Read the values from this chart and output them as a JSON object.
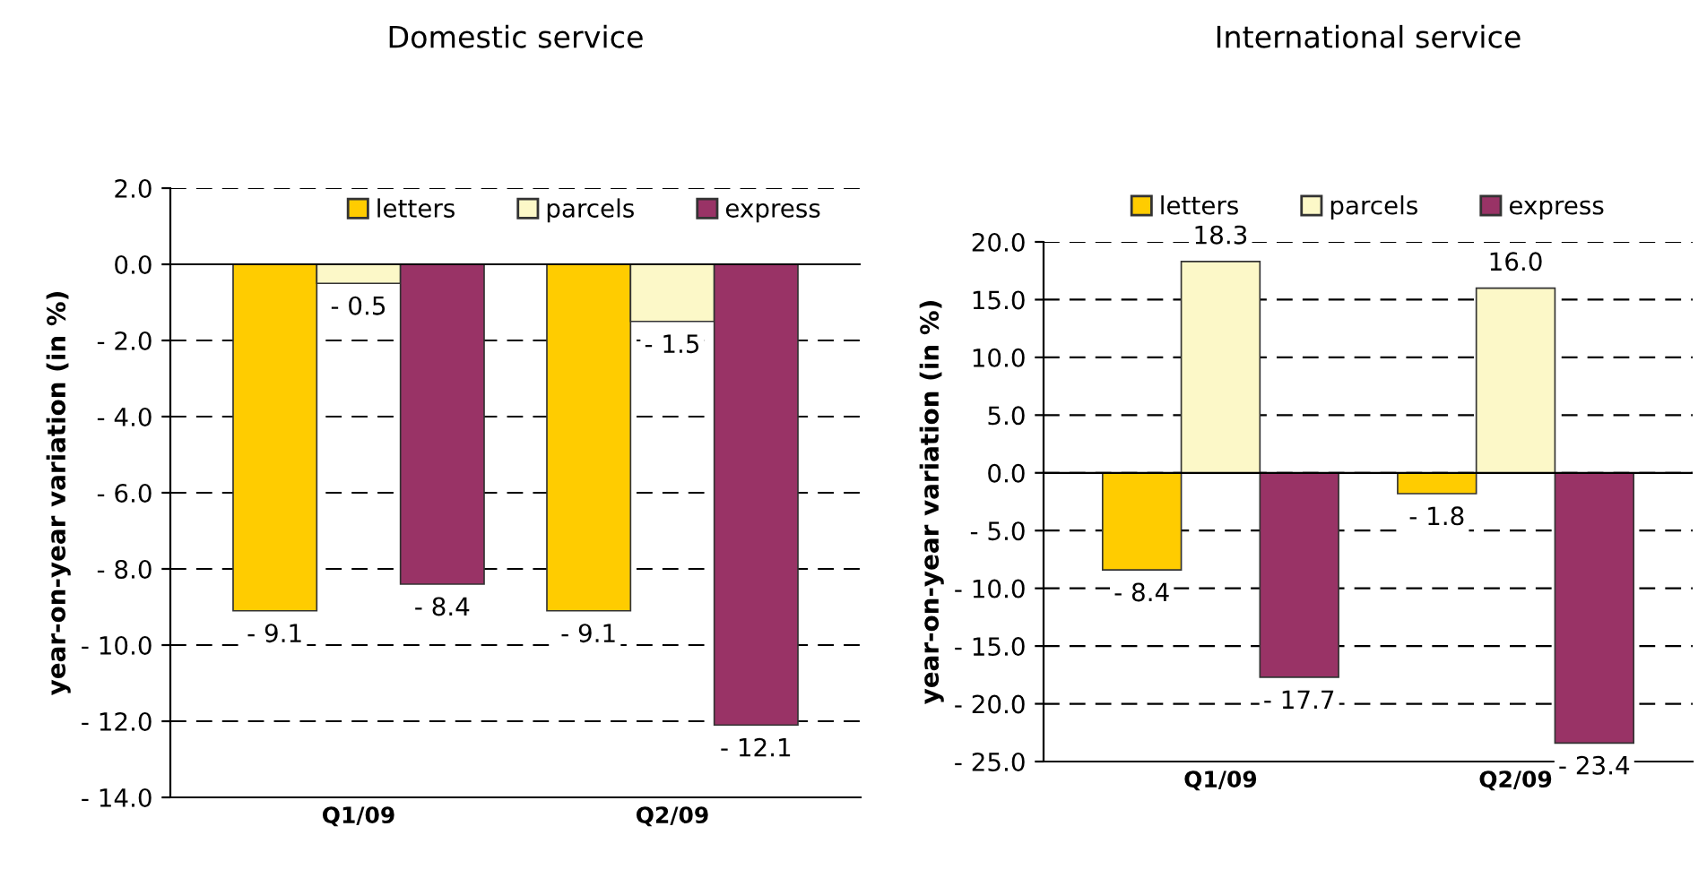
{
  "chart_data": [
    {
      "type": "bar",
      "title": "Domestic service",
      "ylabel": "year-on-year variation (in %)",
      "categories": [
        "Q1/09",
        "Q2/09"
      ],
      "series": [
        {
          "name": "letters",
          "color": "#ffcc00",
          "values": [
            -9.1,
            -9.1
          ],
          "value_labels": [
            "- 9.1",
            "- 9.1"
          ]
        },
        {
          "name": "parcels",
          "color": "#fcf8c8",
          "values": [
            -0.5,
            -1.5
          ],
          "value_labels": [
            "- 0.5",
            "- 1.5"
          ]
        },
        {
          "name": "express",
          "color": "#993366",
          "values": [
            -8.4,
            -12.1
          ],
          "value_labels": [
            "- 8.4",
            "- 12.1"
          ]
        }
      ],
      "ylim": [
        -14,
        2
      ],
      "yticks": [
        {
          "value": 2,
          "label": "2.0"
        },
        {
          "value": 0,
          "label": "0.0"
        },
        {
          "value": -2,
          "label": "- 2.0"
        },
        {
          "value": -4,
          "label": "- 4.0"
        },
        {
          "value": -6,
          "label": "- 6.0"
        },
        {
          "value": -8,
          "label": "- 8.0"
        },
        {
          "value": -10,
          "label": "- 10.0"
        },
        {
          "value": -12,
          "label": "- 12.0"
        },
        {
          "value": -14,
          "label": "- 14.0"
        }
      ],
      "grid": "y",
      "legend": "top"
    },
    {
      "type": "bar",
      "title": "International service",
      "ylabel": "year-on-year variation (in %)",
      "categories": [
        "Q1/09",
        "Q2/09"
      ],
      "series": [
        {
          "name": "letters",
          "color": "#ffcc00",
          "values": [
            -8.4,
            -1.8
          ],
          "value_labels": [
            "- 8.4",
            "- 1.8"
          ]
        },
        {
          "name": "parcels",
          "color": "#fcf8c8",
          "values": [
            18.3,
            16.0
          ],
          "value_labels": [
            "18.3",
            "16.0"
          ]
        },
        {
          "name": "express",
          "color": "#993366",
          "values": [
            -17.7,
            -23.4
          ],
          "value_labels": [
            "- 17.7",
            "- 23.4"
          ]
        }
      ],
      "ylim": [
        -25,
        20
      ],
      "yticks": [
        {
          "value": 20,
          "label": "20.0"
        },
        {
          "value": 15,
          "label": "15.0"
        },
        {
          "value": 10,
          "label": "10.0"
        },
        {
          "value": 5,
          "label": "5.0"
        },
        {
          "value": 0,
          "label": "0.0"
        },
        {
          "value": -5,
          "label": "- 5.0"
        },
        {
          "value": -10,
          "label": "- 10.0"
        },
        {
          "value": -15,
          "label": "- 15.0"
        },
        {
          "value": -20,
          "label": "- 20.0"
        },
        {
          "value": -25,
          "label": "- 25.0"
        }
      ],
      "grid": "y",
      "legend": "top"
    }
  ]
}
